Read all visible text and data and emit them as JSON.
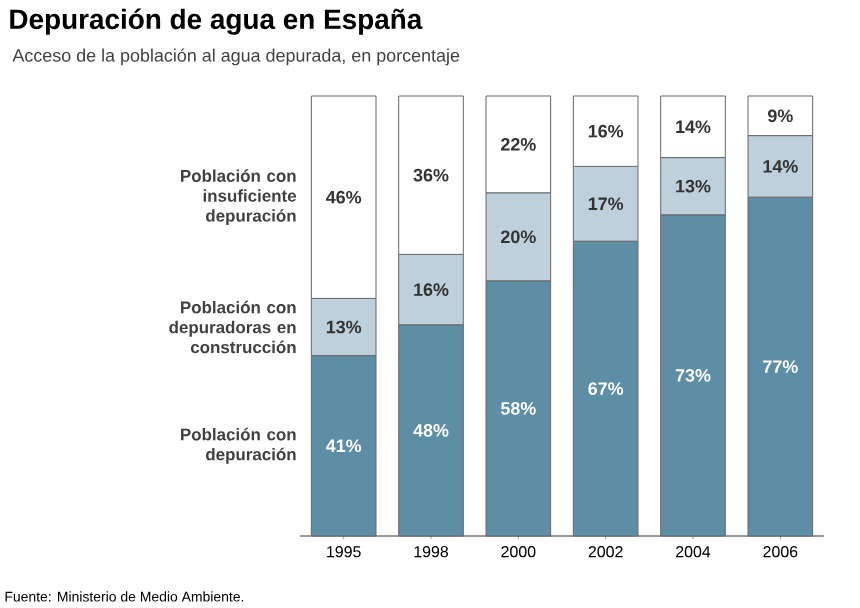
{
  "chart_data": {
    "type": "bar",
    "stacked": true,
    "title": "Depuración de agua en España",
    "subtitle": "Acceso de la población al agua depurada, en porcentaje",
    "categories": [
      "1995",
      "1998",
      "2000",
      "2002",
      "2004",
      "2006"
    ],
    "series": [
      {
        "name": "Población con depuración",
        "color": "#5e8ea6",
        "values": [
          41,
          48,
          58,
          67,
          73,
          77
        ],
        "value_labels": [
          "41%",
          "48%",
          "58%",
          "67%",
          "73%",
          "77%"
        ]
      },
      {
        "name": "Población con depuradoras en construcción",
        "color": "#bdd0dc",
        "values": [
          13,
          16,
          20,
          17,
          13,
          14
        ],
        "value_labels": [
          "13%",
          "16%",
          "20%",
          "17%",
          "13%",
          "14%"
        ]
      },
      {
        "name": "Población con insuficiente depuración",
        "color": "#ffffff",
        "values": [
          46,
          36,
          22,
          16,
          14,
          9
        ],
        "value_labels": [
          "46%",
          "36%",
          "22%",
          "16%",
          "14%",
          "9%"
        ]
      }
    ],
    "legend": false,
    "annotations": [
      "Fuente: Ministerio de Medio Ambiente."
    ]
  }
}
